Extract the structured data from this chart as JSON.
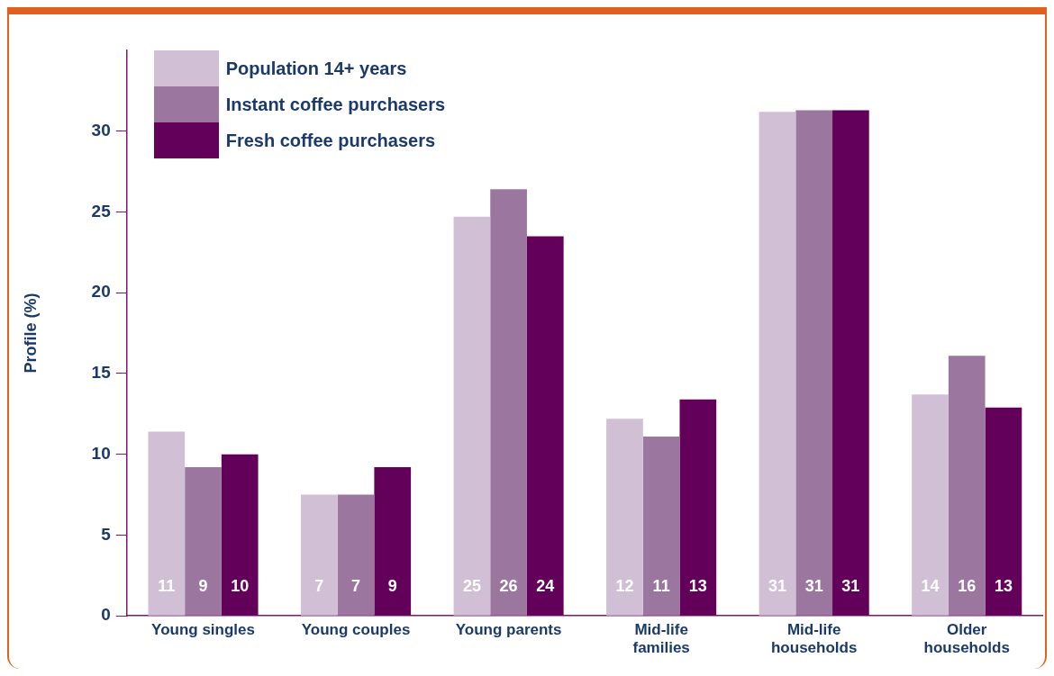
{
  "chart_data": {
    "type": "bar",
    "ylabel": "Profile (%)",
    "categories": [
      "Young singles",
      "Young couples",
      "Young parents",
      "Mid-life families",
      "Mid-life households",
      "Older households"
    ],
    "series": [
      {
        "name": "Population 14+ years",
        "color": "#d1bfd6",
        "values": [
          11.4,
          7.5,
          24.7,
          12.2,
          31.2,
          13.7
        ],
        "value_labels": [
          "11",
          "7",
          "25",
          "12",
          "31",
          "14"
        ]
      },
      {
        "name": "Instant coffee purchasers",
        "color": "#9b77a0",
        "values": [
          9.2,
          7.5,
          26.4,
          11.1,
          31.3,
          16.1
        ],
        "value_labels": [
          "9",
          "7",
          "26",
          "11",
          "31",
          "16"
        ]
      },
      {
        "name": "Fresh coffee purchasers",
        "color": "#62005a",
        "values": [
          10.0,
          9.2,
          23.5,
          13.4,
          31.3,
          12.9
        ],
        "value_labels": [
          "10",
          "9",
          "24",
          "13",
          "31",
          "13"
        ]
      }
    ],
    "ylim": [
      0,
      35
    ],
    "yticks": [
      0,
      5,
      10,
      15,
      20,
      25,
      30
    ],
    "grid": false,
    "legend": "top left"
  }
}
